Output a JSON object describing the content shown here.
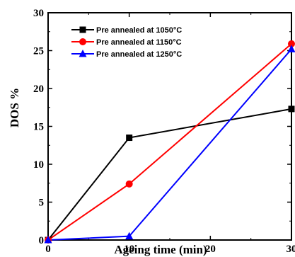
{
  "chart_data": {
    "type": "line",
    "title": "",
    "xlabel": "Ageing time (min)",
    "ylabel": "DOS %",
    "xlim": [
      0,
      30
    ],
    "ylim": [
      0,
      30
    ],
    "xticks": [
      "0",
      "10",
      "20",
      "30"
    ],
    "yticks": [
      "0",
      "5",
      "10",
      "15",
      "20",
      "25",
      "30"
    ],
    "x": [
      0,
      10,
      30
    ],
    "legend_position": "top-left",
    "grid": false,
    "series": [
      {
        "name": "Pre annealed at 1050°C",
        "color": "#000000",
        "marker": "square",
        "values": [
          0,
          13.5,
          17.3
        ]
      },
      {
        "name": "Pre annealed at 1150°C",
        "color": "#ff0000",
        "marker": "circle",
        "values": [
          0,
          7.4,
          25.9
        ]
      },
      {
        "name": "Pre annealed at 1250°C",
        "color": "#0000ff",
        "marker": "triangle",
        "values": [
          0,
          0.5,
          25.2
        ]
      }
    ]
  }
}
